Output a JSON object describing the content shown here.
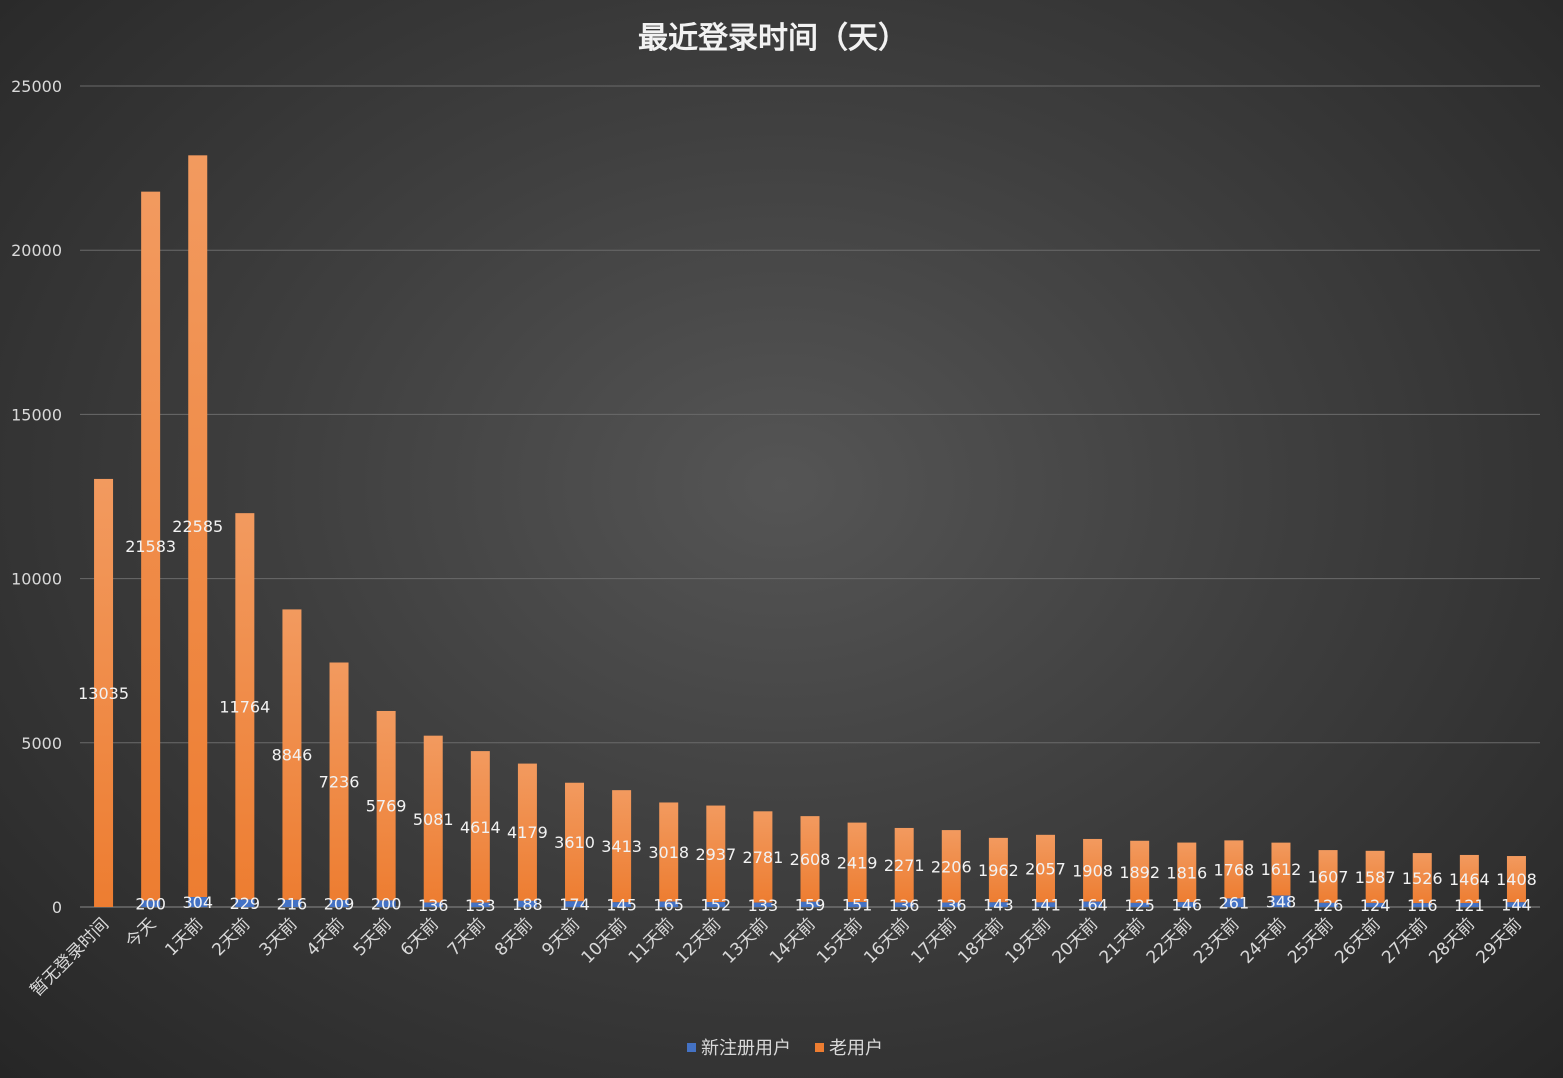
{
  "chart_data": {
    "type": "bar",
    "title": "最近登录时间（天）",
    "categories": [
      "暂无登录时间",
      "今天",
      "1天前",
      "2天前",
      "3天前",
      "4天前",
      "5天前",
      "6天前",
      "7天前",
      "8天前",
      "9天前",
      "10天前",
      "11天前",
      "12天前",
      "13天前",
      "14天前",
      "15天前",
      "16天前",
      "17天前",
      "18天前",
      "19天前",
      "20天前",
      "21天前",
      "22天前",
      "23天前",
      "24天前",
      "25天前",
      "26天前",
      "27天前",
      "28天前",
      "29天前"
    ],
    "series": [
      {
        "name": "新注册用户",
        "color": "#4472c4",
        "values": [
          0,
          200,
          304,
          229,
          216,
          209,
          200,
          136,
          133,
          188,
          174,
          145,
          165,
          152,
          133,
          159,
          151,
          136,
          136,
          143,
          141,
          164,
          125,
          146,
          261,
          348,
          126,
          124,
          116,
          121,
          144
        ],
        "labels": [
          "",
          "200",
          "304",
          "229",
          "216",
          "209",
          "200",
          "136",
          "133",
          "188",
          "174",
          "145",
          "165",
          "152",
          "133",
          "159",
          "151",
          "136",
          "136",
          "143",
          "141",
          "164",
          "125",
          "146",
          "261",
          "348",
          "126",
          "124",
          "116",
          "121",
          "144"
        ]
      },
      {
        "name": "老用户",
        "color": "#ed7d31",
        "values": [
          13035,
          21583,
          22585,
          11764,
          8846,
          7236,
          5769,
          5081,
          4614,
          4179,
          3610,
          3413,
          3018,
          2937,
          2781,
          2608,
          2419,
          2271,
          2206,
          1962,
          2057,
          1908,
          1892,
          1816,
          1768,
          1612,
          1607,
          1587,
          1526,
          1464,
          1408
        ],
        "labels": [
          "13035",
          "21583",
          "22585",
          "11764",
          "8846",
          "7236",
          "5769",
          "5081",
          "4614",
          "4179",
          "3610",
          "3413",
          "3018",
          "2937",
          "2781",
          "2608",
          "2419",
          "2271",
          "2206",
          "1962",
          "2057",
          "1908",
          "1892",
          "1816",
          "1768",
          "1612",
          "1607",
          "1587",
          "1526",
          "1464",
          "1408"
        ]
      }
    ],
    "stacked": true,
    "ylim": [
      0,
      25000
    ],
    "yticks": [
      "0",
      "5000",
      "10000",
      "15000",
      "20000",
      "25000"
    ],
    "ytick_values": [
      0,
      5000,
      10000,
      15000,
      20000,
      25000
    ],
    "grid": true,
    "legend_position": "bottom"
  }
}
